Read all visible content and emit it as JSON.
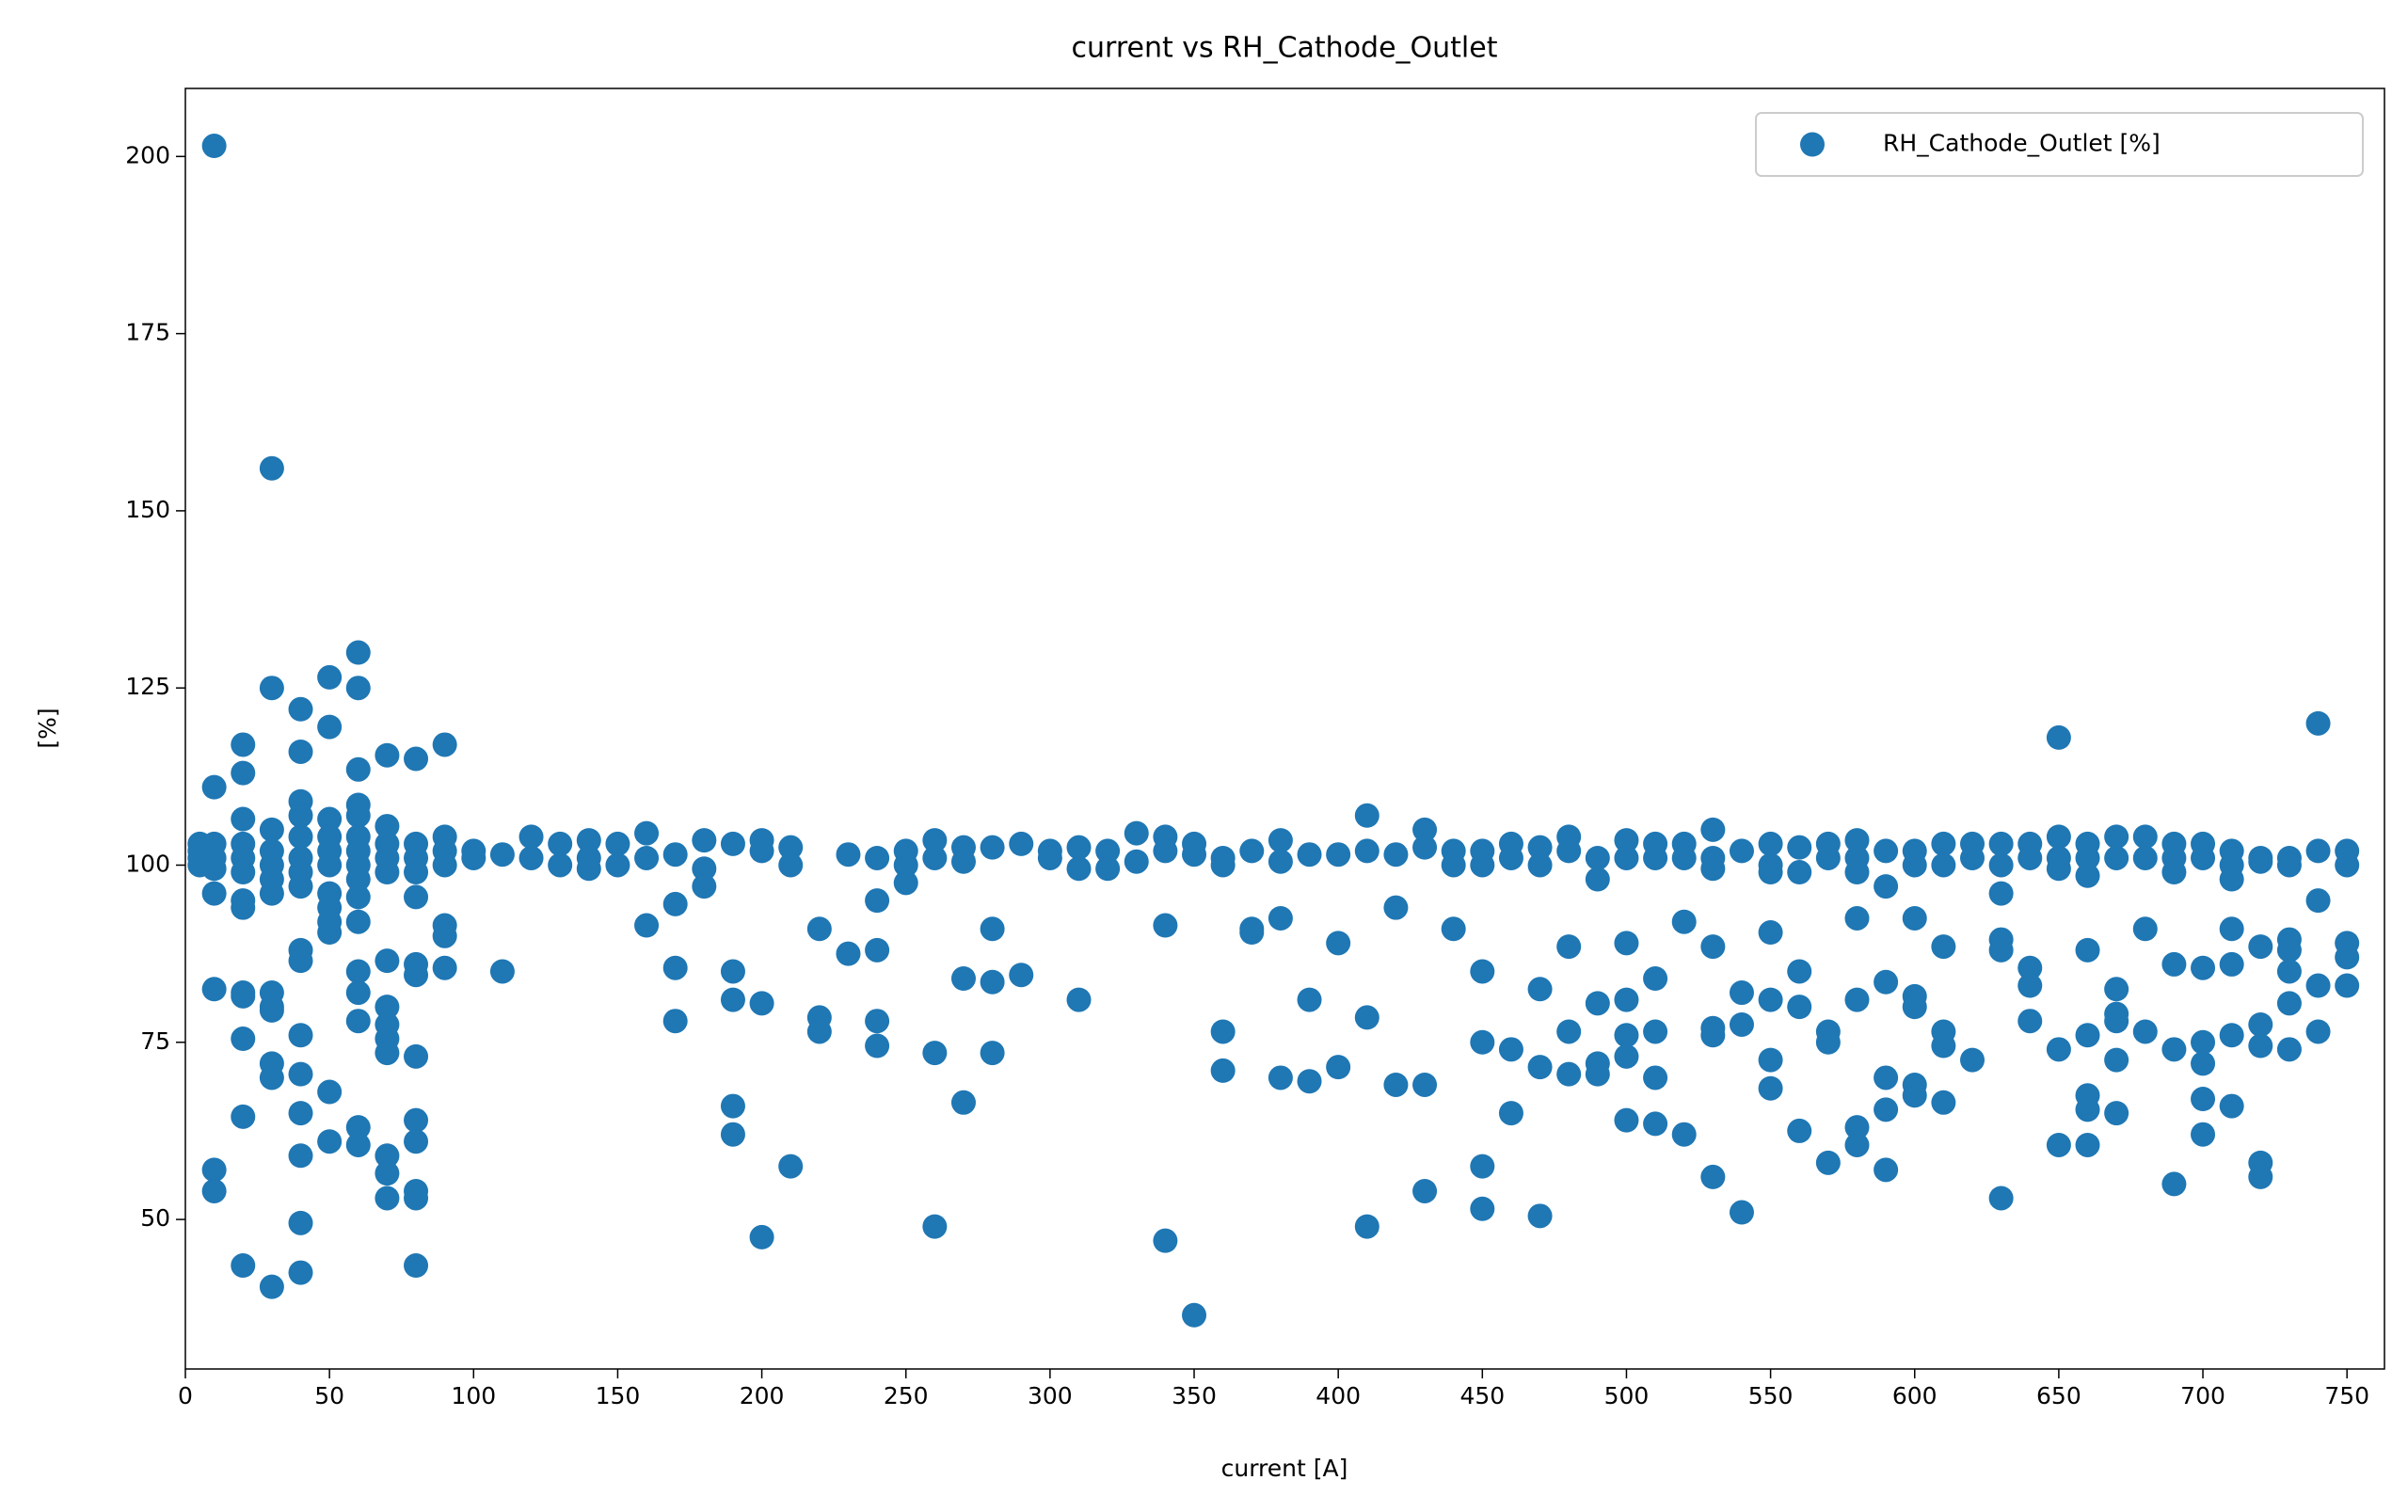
{
  "chart_data": {
    "type": "scatter",
    "title": "current vs RH_Cathode_Outlet",
    "xlabel": "current [A]",
    "ylabel": "[%]",
    "xlim": [
      0,
      763
    ],
    "ylim": [
      28.9,
      209.6
    ],
    "xticks": [
      0,
      50,
      100,
      150,
      200,
      250,
      300,
      350,
      400,
      450,
      500,
      550,
      600,
      650,
      700,
      750
    ],
    "yticks": [
      50,
      75,
      100,
      125,
      150,
      175,
      200
    ],
    "legend": "upper right",
    "grid": false,
    "x": [
      5,
      5,
      5,
      5,
      10,
      10,
      10,
      10,
      10,
      10,
      10,
      10,
      10,
      20,
      20,
      20,
      20,
      20,
      20,
      20,
      20,
      20,
      20,
      20,
      20,
      20,
      30,
      30,
      30,
      30,
      30,
      30,
      30,
      30,
      30,
      30,
      30,
      30,
      30,
      40,
      40,
      40,
      40,
      40,
      40,
      40,
      40,
      40,
      40,
      40,
      40,
      40,
      40,
      40,
      40,
      50,
      50,
      50,
      50,
      50,
      50,
      50,
      50,
      50,
      50,
      50,
      50,
      60,
      60,
      60,
      60,
      60,
      60,
      60,
      60,
      60,
      60,
      60,
      60,
      60,
      60,
      60,
      60,
      70,
      70,
      70,
      70,
      70,
      70,
      70,
      70,
      70,
      70,
      70,
      70,
      70,
      80,
      80,
      80,
      80,
      80,
      80,
      80,
      80,
      80,
      80,
      80,
      80,
      80,
      90,
      90,
      90,
      90,
      90,
      90,
      90,
      100,
      100,
      110,
      110,
      120,
      120,
      130,
      130,
      140,
      140,
      140,
      150,
      150,
      160,
      160,
      160,
      170,
      170,
      170,
      170,
      180,
      180,
      180,
      190,
      190,
      190,
      190,
      190,
      200,
      200,
      200,
      200,
      210,
      210,
      210,
      220,
      220,
      220,
      230,
      230,
      240,
      240,
      240,
      240,
      240,
      250,
      250,
      250,
      260,
      260,
      260,
      260,
      270,
      270,
      270,
      270,
      280,
      280,
      280,
      280,
      290,
      290,
      300,
      300,
      310,
      310,
      310,
      320,
      320,
      330,
      330,
      340,
      340,
      340,
      340,
      350,
      350,
      350,
      360,
      360,
      360,
      360,
      370,
      370,
      370,
      380,
      380,
      380,
      380,
      390,
      390,
      390,
      400,
      400,
      400,
      410,
      410,
      410,
      410,
      420,
      420,
      420,
      430,
      430,
      430,
      430,
      440,
      440,
      440,
      450,
      450,
      450,
      450,
      450,
      450,
      460,
      460,
      460,
      460,
      470,
      470,
      470,
      470,
      470,
      480,
      480,
      480,
      480,
      480,
      490,
      490,
      490,
      490,
      490,
      500,
      500,
      500,
      500,
      500,
      500,
      500,
      510,
      510,
      510,
      510,
      510,
      510,
      520,
      520,
      520,
      520,
      530,
      530,
      530,
      530,
      530,
      530,
      530,
      540,
      540,
      540,
      540,
      550,
      550,
      550,
      550,
      550,
      550,
      550,
      560,
      560,
      560,
      560,
      560,
      570,
      570,
      570,
      570,
      570,
      580,
      580,
      580,
      580,
      580,
      580,
      580,
      590,
      590,
      590,
      590,
      590,
      590,
      600,
      600,
      600,
      600,
      600,
      600,
      600,
      610,
      610,
      610,
      610,
      610,
      610,
      620,
      620,
      620,
      630,
      630,
      630,
      630,
      630,
      630,
      640,
      640,
      640,
      640,
      640,
      650,
      650,
      650,
      650,
      650,
      650,
      660,
      660,
      660,
      660,
      660,
      660,
      660,
      660,
      670,
      670,
      670,
      670,
      670,
      670,
      670,
      680,
      680,
      680,
      680,
      690,
      690,
      690,
      690,
      690,
      690,
      700,
      700,
      700,
      700,
      700,
      700,
      700,
      710,
      710,
      710,
      710,
      710,
      710,
      710,
      720,
      720,
      720,
      720,
      720,
      720,
      720,
      730,
      730,
      730,
      730,
      730,
      730,
      730,
      740,
      740,
      740,
      740,
      740,
      750,
      750,
      750,
      750,
      750
    ],
    "series": [
      {
        "name": "RH_Cathode_Outlet [%]",
        "color": "#1f77b4",
        "values": [
          100,
          102,
          103,
          101,
          201.5,
          111,
          103,
          101,
          99.5,
          96,
          82.5,
          57,
          54,
          117,
          113,
          106.5,
          103,
          101,
          99,
          94,
          95,
          82,
          81.5,
          75.5,
          64.5,
          43.5,
          156,
          125,
          105,
          102,
          100,
          98,
          96,
          82,
          80,
          79.5,
          72,
          70,
          40.5,
          122,
          116,
          109,
          107,
          104,
          101,
          99,
          97,
          88,
          86.5,
          76,
          70.5,
          65,
          59,
          49.5,
          42.5,
          126.5,
          119.5,
          106.5,
          104,
          102,
          100,
          96,
          94,
          92,
          90.5,
          68,
          61,
          130,
          125,
          113.5,
          108.5,
          107,
          104,
          102,
          100,
          98,
          95.5,
          92,
          85,
          82,
          78,
          63,
          60.5,
          115.5,
          105.5,
          103,
          101,
          99,
          86.5,
          80,
          77.5,
          75.5,
          73.5,
          59,
          56.5,
          53,
          115,
          103,
          101,
          99,
          95.5,
          86,
          84.5,
          73,
          64,
          61,
          54,
          53,
          43.5,
          117,
          104,
          102,
          100,
          91.5,
          90,
          85.5,
          102,
          101,
          101.5,
          85,
          104,
          101,
          103,
          100,
          103.5,
          101,
          99.5,
          103,
          100,
          104.5,
          101,
          91.5,
          101.5,
          94.5,
          85.5,
          78,
          103.5,
          99.5,
          97,
          103,
          85,
          81,
          66,
          62,
          103.5,
          102,
          80.5,
          47.5,
          102.5,
          100,
          57.5,
          91,
          78.5,
          76.5,
          101.5,
          87.5,
          101,
          95,
          88,
          78,
          74.5,
          102,
          100,
          97.5,
          103.5,
          101,
          73.5,
          49,
          102.5,
          100.5,
          84,
          66.5,
          102.5,
          91,
          83.5,
          73.5,
          103,
          84.5,
          102,
          101,
          102.5,
          99.5,
          81,
          102,
          99.5,
          104.5,
          100.5,
          104,
          102,
          91.5,
          47,
          103,
          101.5,
          36.5,
          101,
          100,
          76.5,
          71,
          102,
          91,
          90.5,
          103.5,
          100.5,
          92.5,
          70,
          101.5,
          81,
          69.5,
          101.5,
          89,
          71.5,
          107,
          102,
          78.5,
          49,
          101.5,
          94,
          69,
          105,
          102.5,
          69,
          54,
          102,
          100,
          91,
          102,
          100,
          85,
          75,
          57.5,
          51.5,
          103,
          101,
          74,
          65,
          102.5,
          100,
          82.5,
          71.5,
          50.5,
          104,
          102,
          88.5,
          76.5,
          70.5,
          101,
          98,
          80.5,
          72,
          70.5,
          103.5,
          101,
          89,
          81,
          76,
          73,
          64,
          103,
          101,
          84,
          76.5,
          70,
          63.5,
          103,
          101,
          92,
          62,
          105,
          101,
          99.5,
          88.5,
          77,
          76,
          56,
          102,
          82,
          77.5,
          51,
          103,
          100,
          99,
          90.5,
          81,
          72.5,
          68.5,
          102.5,
          99,
          85,
          80,
          62.5,
          103,
          101,
          76.5,
          75,
          58,
          103.5,
          101,
          99,
          92.5,
          81,
          63,
          60.5,
          102,
          97,
          83.5,
          70,
          65.5,
          57,
          102,
          100,
          92.5,
          81.5,
          80,
          69,
          67.5,
          103,
          100,
          88.5,
          76.5,
          74.5,
          66.5,
          103,
          101,
          72.5,
          103,
          100,
          96,
          89.5,
          88,
          53,
          103,
          101,
          85.5,
          83,
          78,
          118,
          104,
          101,
          99.5,
          74,
          60.5,
          103,
          101,
          98.5,
          88,
          76,
          67.5,
          65.5,
          60.5,
          104,
          101,
          82.5,
          79,
          78,
          72.5,
          65,
          104,
          101,
          91,
          76.5,
          103,
          101,
          99,
          86,
          74,
          55,
          103,
          101,
          85.5,
          75,
          72,
          67,
          62,
          102,
          100,
          98,
          91,
          86,
          76,
          66,
          101,
          100.5,
          88.5,
          77.5,
          74.5,
          58,
          56,
          101,
          100,
          89.5,
          88,
          85,
          80.5,
          74,
          120,
          102,
          95,
          83,
          76.5,
          102,
          100,
          89,
          87,
          83
        ]
      }
    ]
  }
}
